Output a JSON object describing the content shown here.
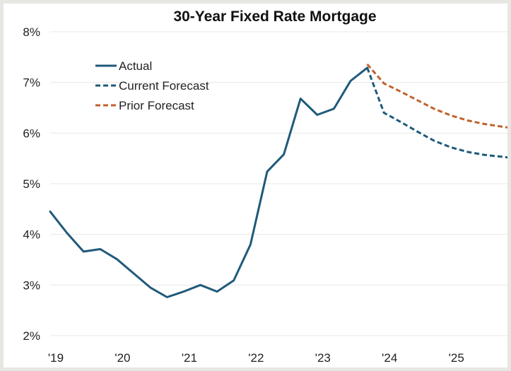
{
  "chart_data": {
    "type": "line",
    "title": "30-Year Fixed Rate Mortgage",
    "xlabel": "",
    "ylabel": "",
    "ylim": [
      2,
      8
    ],
    "xlim": [
      2019.0,
      2025.85
    ],
    "grid": true,
    "legend_position": "top-left",
    "y_ticks": [
      {
        "value": 2,
        "label": "2%"
      },
      {
        "value": 3,
        "label": "3%"
      },
      {
        "value": 4,
        "label": "4%"
      },
      {
        "value": 5,
        "label": "5%"
      },
      {
        "value": 6,
        "label": "6%"
      },
      {
        "value": 7,
        "label": "7%"
      },
      {
        "value": 8,
        "label": "8%"
      }
    ],
    "x_ticks": [
      {
        "value": 2019,
        "label": "'19"
      },
      {
        "value": 2020,
        "label": "'20"
      },
      {
        "value": 2021,
        "label": "'21"
      },
      {
        "value": 2022,
        "label": "'22"
      },
      {
        "value": 2023,
        "label": "'23"
      },
      {
        "value": 2024,
        "label": "'24"
      },
      {
        "value": 2025,
        "label": "'25"
      }
    ],
    "series": [
      {
        "name": "Actual",
        "color": "#1f5a7a",
        "style": "solid",
        "x": [
          2019.0,
          2019.25,
          2019.5,
          2019.75,
          2020.0,
          2020.25,
          2020.5,
          2020.75,
          2021.0,
          2021.25,
          2021.5,
          2021.75,
          2022.0,
          2022.25,
          2022.5,
          2022.75,
          2023.0,
          2023.25,
          2023.5,
          2023.75
        ],
        "y": [
          4.45,
          4.03,
          3.66,
          3.71,
          3.51,
          3.23,
          2.95,
          2.76,
          2.87,
          3.0,
          2.87,
          3.09,
          3.8,
          5.24,
          5.58,
          6.68,
          6.36,
          6.48,
          7.03,
          7.29
        ]
      },
      {
        "name": "Current Forecast",
        "color": "#1f5a7a",
        "style": "dashed",
        "x": [
          2023.75,
          2024.0,
          2024.25,
          2024.5,
          2024.75,
          2025.0,
          2025.25,
          2025.5,
          2025.85
        ],
        "y": [
          7.29,
          6.4,
          6.22,
          6.03,
          5.85,
          5.72,
          5.63,
          5.57,
          5.52
        ]
      },
      {
        "name": "Prior Forecast",
        "color": "#c0622d",
        "style": "dashed",
        "x": [
          2023.75,
          2024.0,
          2024.25,
          2024.5,
          2024.75,
          2025.0,
          2025.25,
          2025.5,
          2025.85
        ],
        "y": [
          7.36,
          6.98,
          6.82,
          6.65,
          6.48,
          6.35,
          6.25,
          6.18,
          6.11
        ]
      }
    ]
  }
}
